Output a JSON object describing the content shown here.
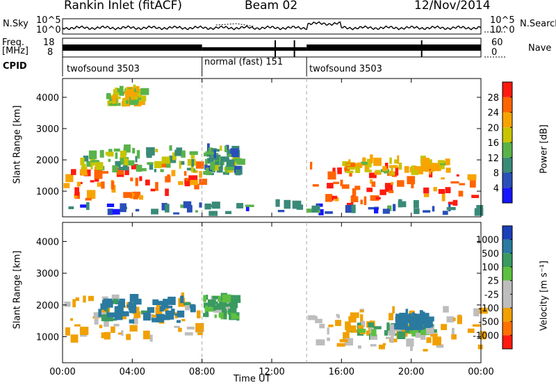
{
  "header": {
    "station": "Rankin Inlet (fitACF)",
    "beam": "Beam 02",
    "date": "12/Nov/2014"
  },
  "top_panels": {
    "nsky_label": "N.Sky",
    "nsky_ticks": [
      "10^5",
      "10^0"
    ],
    "nsearch_label": "N.Search",
    "freq_label": "Freq.",
    "freq_unit": "[MHz]",
    "freq_ticks": [
      "18",
      "8"
    ],
    "nave_ticks": [
      "60",
      "0"
    ],
    "nave_label": "Nave",
    "cpid_label": "CPID",
    "cpid_segments": [
      {
        "label": "twofsound 3503",
        "start_hr": 0,
        "end_hr": 8
      },
      {
        "label": "normal (fast) 151",
        "start_hr": 8,
        "end_hr": 14
      },
      {
        "label": "twofsound 3503",
        "start_hr": 14,
        "end_hr": 24
      }
    ]
  },
  "chart_data": [
    {
      "type": "heatmap",
      "name": "power",
      "xlabel": "Time UT",
      "ylabel": "Slant Range [km]",
      "xlim": [
        0,
        24
      ],
      "ylim": [
        180,
        4600
      ],
      "x_ticks": [
        "00:00",
        "04:00",
        "08:00",
        "12:00",
        "16:00",
        "20:00",
        "00:00"
      ],
      "y_ticks": [
        1000,
        2000,
        3000,
        4000
      ],
      "colorbar": {
        "label": "Power [dB]",
        "ticks": [
          4,
          8,
          12,
          16,
          20,
          24,
          28
        ],
        "colors": [
          "#1616ff",
          "#2a4fb8",
          "#3a8a78",
          "#59b34a",
          "#c8c400",
          "#f7a400",
          "#ff6400",
          "#ff1a10"
        ]
      },
      "mode_boundaries_hr": [
        8,
        14
      ],
      "regions": [
        {
          "t0": 0.0,
          "t1": 7.9,
          "r0": 700,
          "r1": 1800,
          "value": 26
        },
        {
          "t0": 1.0,
          "t1": 7.5,
          "r0": 1600,
          "r1": 2300,
          "value": 14
        },
        {
          "t0": 8.0,
          "t1": 10.0,
          "r0": 1500,
          "r1": 2300,
          "value": 12
        },
        {
          "t0": 2.5,
          "t1": 4.5,
          "r0": 3700,
          "r1": 4200,
          "value": 18
        },
        {
          "t0": 14.0,
          "t1": 24.0,
          "r0": 500,
          "r1": 1700,
          "value": 27
        },
        {
          "t0": 16.0,
          "t1": 22.0,
          "r0": 1500,
          "r1": 1900,
          "value": 20
        },
        {
          "t0": 0.0,
          "t1": 24.0,
          "r0": 200,
          "r1": 500,
          "value": 8
        }
      ]
    },
    {
      "type": "heatmap",
      "name": "velocity",
      "xlabel": "Time UT",
      "ylabel": "Slant Range [km]",
      "xlim": [
        0,
        24
      ],
      "ylim": [
        180,
        4600
      ],
      "x_ticks": [
        "00:00",
        "04:00",
        "08:00",
        "12:00",
        "16:00",
        "20:00",
        "00:00"
      ],
      "y_ticks": [
        1000,
        2000,
        3000,
        4000
      ],
      "colorbar": {
        "label": "Velocity [m s⁻¹]",
        "ticks": [
          1000,
          500,
          100,
          25,
          -25,
          -100,
          -500,
          -1000
        ],
        "colors": [
          "#1b3fb8",
          "#2a7aa0",
          "#3a9a60",
          "#5dc040",
          "#bdbdbd",
          "#bdbdbd",
          "#f0a000",
          "#ff7000",
          "#ff1a10"
        ]
      },
      "mode_boundaries_hr": [
        8,
        14
      ],
      "regions": [
        {
          "t0": 0.0,
          "t1": 7.9,
          "r0": 800,
          "r1": 2200,
          "value": -200
        },
        {
          "t0": 2.0,
          "t1": 7.5,
          "r0": 1400,
          "r1": 2100,
          "value": 600
        },
        {
          "t0": 8.0,
          "t1": 10.0,
          "r0": 1500,
          "r1": 2200,
          "value": 200
        },
        {
          "t0": 14.0,
          "t1": 24.0,
          "r0": 500,
          "r1": 1800,
          "value": -150
        },
        {
          "t0": 16.0,
          "t1": 21.0,
          "r0": 900,
          "r1": 1300,
          "value": 0
        },
        {
          "t0": 19.0,
          "t1": 21.0,
          "r0": 1200,
          "r1": 1600,
          "value": 700
        }
      ]
    }
  ]
}
